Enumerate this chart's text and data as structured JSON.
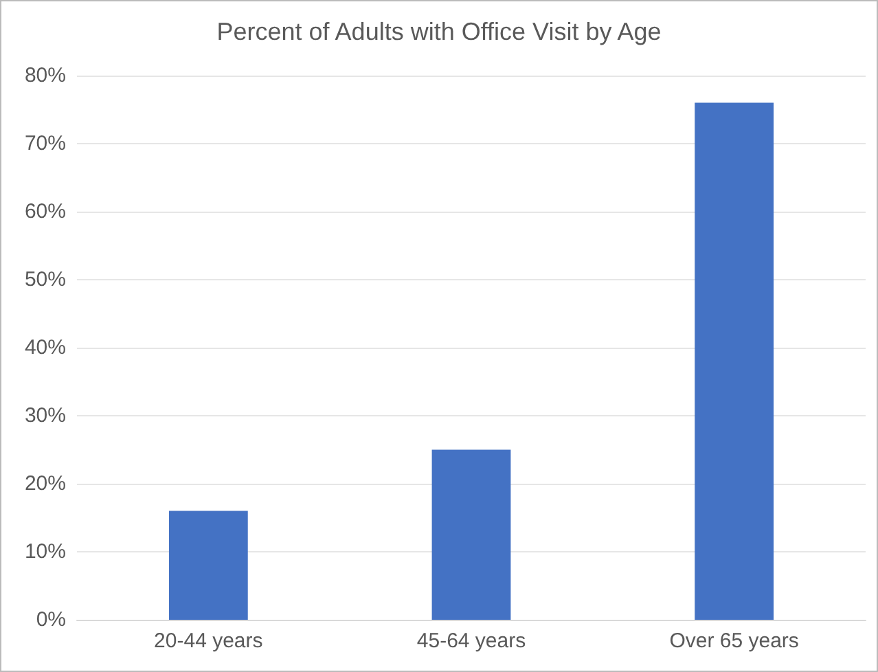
{
  "chart_data": {
    "type": "bar",
    "title": "Percent of Adults with Office Visit by Age",
    "categories": [
      "20-44 years",
      "45-64 years",
      "Over 65 years"
    ],
    "values": [
      16,
      25,
      76
    ],
    "color": "#4472c4",
    "ylim": [
      0,
      80
    ],
    "yticks": [
      {
        "value": 0,
        "label": "0%"
      },
      {
        "value": 10,
        "label": "10%"
      },
      {
        "value": 20,
        "label": "20%"
      },
      {
        "value": 30,
        "label": "30%"
      },
      {
        "value": 40,
        "label": "40%"
      },
      {
        "value": 50,
        "label": "50%"
      },
      {
        "value": 60,
        "label": "60%"
      },
      {
        "value": 70,
        "label": "70%"
      },
      {
        "value": 80,
        "label": "80%"
      }
    ],
    "grid": "y"
  }
}
